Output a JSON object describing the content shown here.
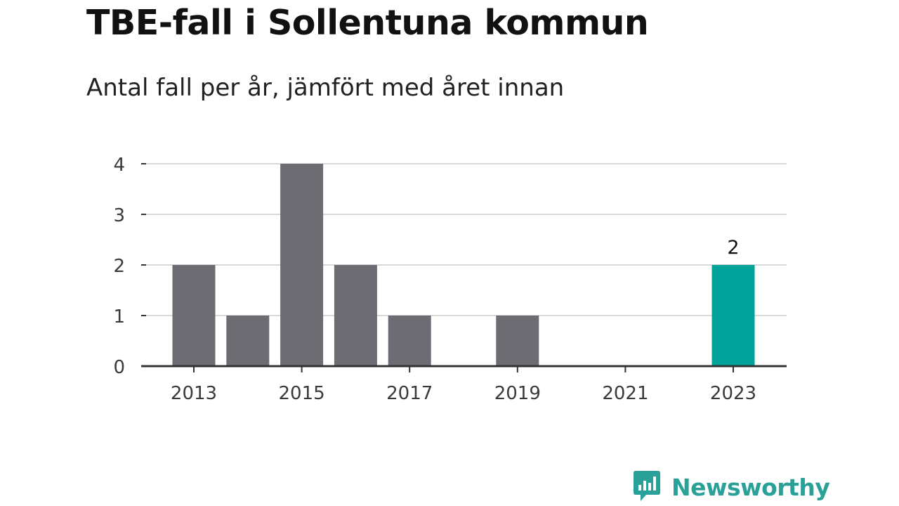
{
  "title": "TBE-fall i Sollentuna kommun",
  "subtitle": "Antal fall per år, jämfört med året innan",
  "brand": {
    "name": "Newsworthy",
    "icon": "bar-chart-speech-bubble-icon"
  },
  "colors": {
    "bar": "#6d6c72",
    "highlight": "#00a39a",
    "grid": "#d9d9d9",
    "axis": "#333333",
    "brand": "#2aa198"
  },
  "chart_data": {
    "type": "bar",
    "categories": [
      "2013",
      "2014",
      "2015",
      "2016",
      "2017",
      "2018",
      "2019",
      "2020",
      "2021",
      "2022",
      "2023"
    ],
    "values": [
      2,
      1,
      4,
      2,
      1,
      0,
      1,
      0,
      0,
      0,
      2
    ],
    "x_tick_labels": [
      "2013",
      "2015",
      "2017",
      "2019",
      "2021",
      "2023"
    ],
    "y_ticks": [
      0,
      1,
      2,
      3,
      4
    ],
    "ylim": [
      0,
      4
    ],
    "highlight_category": "2023",
    "data_labels": [
      {
        "category": "2023",
        "text": "2"
      }
    ],
    "grid": true,
    "legend": "none"
  }
}
